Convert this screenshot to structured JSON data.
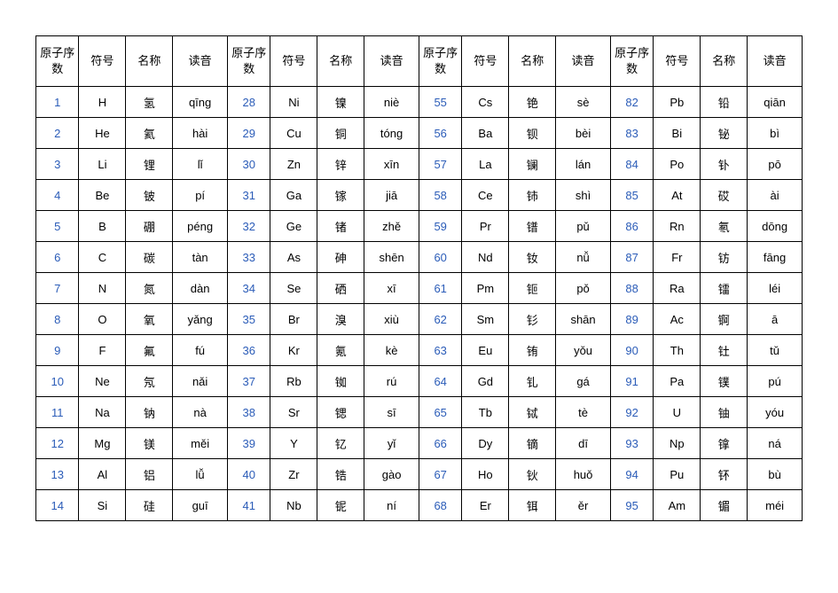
{
  "table": {
    "background_color": "#ffffff",
    "border_color": "#000000",
    "header_font_size": 13,
    "cell_font_size": 13,
    "number_color": "#2b5cb8",
    "text_color": "#000000",
    "headers": {
      "atomic_number": "原子序数",
      "symbol": "符号",
      "name": "名称",
      "pronunciation": "读音"
    },
    "rows": [
      [
        {
          "num": "1",
          "sym": "H",
          "name": "氢",
          "pron": "qīng"
        },
        {
          "num": "28",
          "sym": "Ni",
          "name": "镍",
          "pron": "niè"
        },
        {
          "num": "55",
          "sym": "Cs",
          "name": "铯",
          "pron": "sè"
        },
        {
          "num": "82",
          "sym": "Pb",
          "name": "铅",
          "pron": "qiān"
        }
      ],
      [
        {
          "num": "2",
          "sym": "He",
          "name": "氦",
          "pron": "hài"
        },
        {
          "num": "29",
          "sym": "Cu",
          "name": "铜",
          "pron": "tóng"
        },
        {
          "num": "56",
          "sym": "Ba",
          "name": "钡",
          "pron": "bèi"
        },
        {
          "num": "83",
          "sym": "Bi",
          "name": "铋",
          "pron": "bì"
        }
      ],
      [
        {
          "num": "3",
          "sym": "Li",
          "name": "锂",
          "pron": "lǐ"
        },
        {
          "num": "30",
          "sym": "Zn",
          "name": "锌",
          "pron": "xīn"
        },
        {
          "num": "57",
          "sym": "La",
          "name": "镧",
          "pron": "lán"
        },
        {
          "num": "84",
          "sym": "Po",
          "name": "钋",
          "pron": "pō"
        }
      ],
      [
        {
          "num": "4",
          "sym": "Be",
          "name": "铍",
          "pron": "pí"
        },
        {
          "num": "31",
          "sym": "Ga",
          "name": "镓",
          "pron": "jiā"
        },
        {
          "num": "58",
          "sym": "Ce",
          "name": "铈",
          "pron": "shì"
        },
        {
          "num": "85",
          "sym": "At",
          "name": "砹",
          "pron": "ài"
        }
      ],
      [
        {
          "num": "5",
          "sym": "B",
          "name": "硼",
          "pron": "péng"
        },
        {
          "num": "32",
          "sym": "Ge",
          "name": "锗",
          "pron": "zhě"
        },
        {
          "num": "59",
          "sym": "Pr",
          "name": "镨",
          "pron": "pǔ"
        },
        {
          "num": "86",
          "sym": "Rn",
          "name": "氡",
          "pron": "dōng"
        }
      ],
      [
        {
          "num": "6",
          "sym": "C",
          "name": "碳",
          "pron": "tàn"
        },
        {
          "num": "33",
          "sym": "As",
          "name": "砷",
          "pron": "shēn"
        },
        {
          "num": "60",
          "sym": "Nd",
          "name": "钕",
          "pron": "nǚ"
        },
        {
          "num": "87",
          "sym": "Fr",
          "name": "钫",
          "pron": "fāng"
        }
      ],
      [
        {
          "num": "7",
          "sym": "N",
          "name": "氮",
          "pron": "dàn"
        },
        {
          "num": "34",
          "sym": "Se",
          "name": "硒",
          "pron": "xī"
        },
        {
          "num": "61",
          "sym": "Pm",
          "name": "钷",
          "pron": "pǒ"
        },
        {
          "num": "88",
          "sym": "Ra",
          "name": "镭",
          "pron": "léi"
        }
      ],
      [
        {
          "num": "8",
          "sym": "O",
          "name": "氧",
          "pron": "yǎng"
        },
        {
          "num": "35",
          "sym": "Br",
          "name": "溴",
          "pron": "xiù"
        },
        {
          "num": "62",
          "sym": "Sm",
          "name": "钐",
          "pron": "shān"
        },
        {
          "num": "89",
          "sym": "Ac",
          "name": "锕",
          "pron": "ā"
        }
      ],
      [
        {
          "num": "9",
          "sym": "F",
          "name": "氟",
          "pron": "fú"
        },
        {
          "num": "36",
          "sym": "Kr",
          "name": "氪",
          "pron": "kè"
        },
        {
          "num": "63",
          "sym": "Eu",
          "name": "铕",
          "pron": "yǒu"
        },
        {
          "num": "90",
          "sym": "Th",
          "name": "钍",
          "pron": "tǔ"
        }
      ],
      [
        {
          "num": "10",
          "sym": "Ne",
          "name": "氖",
          "pron": "nǎi"
        },
        {
          "num": "37",
          "sym": "Rb",
          "name": "铷",
          "pron": "rú"
        },
        {
          "num": "64",
          "sym": "Gd",
          "name": "钆",
          "pron": "gá"
        },
        {
          "num": "91",
          "sym": "Pa",
          "name": "镤",
          "pron": "pú"
        }
      ],
      [
        {
          "num": "11",
          "sym": "Na",
          "name": "钠",
          "pron": "nà"
        },
        {
          "num": "38",
          "sym": "Sr",
          "name": "锶",
          "pron": "sī"
        },
        {
          "num": "65",
          "sym": "Tb",
          "name": "铽",
          "pron": "tè"
        },
        {
          "num": "92",
          "sym": "U",
          "name": "铀",
          "pron": "yóu"
        }
      ],
      [
        {
          "num": "12",
          "sym": "Mg",
          "name": "镁",
          "pron": "měi"
        },
        {
          "num": "39",
          "sym": "Y",
          "name": "钇",
          "pron": "yǐ"
        },
        {
          "num": "66",
          "sym": "Dy",
          "name": "镝",
          "pron": "dī"
        },
        {
          "num": "93",
          "sym": "Np",
          "name": "镎",
          "pron": "ná"
        }
      ],
      [
        {
          "num": "13",
          "sym": "Al",
          "name": "铝",
          "pron": "lǚ"
        },
        {
          "num": "40",
          "sym": "Zr",
          "name": "锆",
          "pron": "gào"
        },
        {
          "num": "67",
          "sym": "Ho",
          "name": "钬",
          "pron": "huǒ"
        },
        {
          "num": "94",
          "sym": "Pu",
          "name": "钚",
          "pron": "bù"
        }
      ],
      [
        {
          "num": "14",
          "sym": "Si",
          "name": "硅",
          "pron": "guī"
        },
        {
          "num": "41",
          "sym": "Nb",
          "name": "铌",
          "pron": "ní"
        },
        {
          "num": "68",
          "sym": "Er",
          "name": "铒",
          "pron": "ěr"
        },
        {
          "num": "95",
          "sym": "Am",
          "name": "镅",
          "pron": "méi"
        }
      ]
    ]
  }
}
